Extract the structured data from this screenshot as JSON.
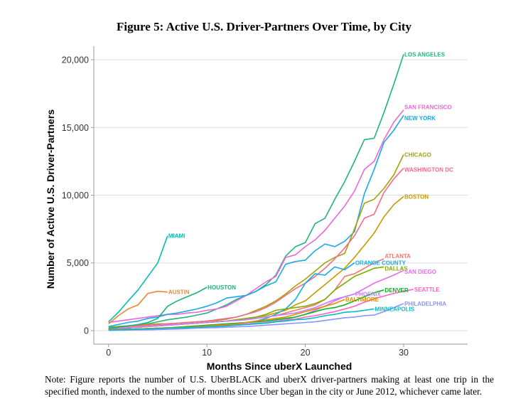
{
  "title": "Figure 5: Active U.S. Driver-Partners Over Time, by City",
  "note": "Note: Figure reports the number of U.S. UberBLACK and uberX driver-partners making at least one trip in the specified month, indexed to the number of months since Uber began in the city or June 2012, whichever came later.",
  "chart_data": {
    "type": "line",
    "title": "Figure 5: Active U.S. Driver-Partners Over Time, by City",
    "xlabel": "Months Since uberX Launched",
    "ylabel": "Number of Active U.S. Driver-Partners",
    "xlim": [
      -1.5,
      36.5
    ],
    "ylim": [
      -1000,
      21000
    ],
    "xticks": [
      0,
      10,
      20,
      30
    ],
    "xtick_labels": [
      "0",
      "10",
      "20",
      "30"
    ],
    "yticks": [
      0,
      5000,
      10000,
      15000,
      20000
    ],
    "ytick_labels": [
      "0",
      "5,000",
      "10,000",
      "15,000",
      "20,000"
    ],
    "grid": "horizontal",
    "legend": "direct labels at line ends",
    "series": [
      {
        "name": "LOS ANGELES",
        "color": "#1fb57f",
        "label_dx": 0,
        "label_dy": 0,
        "x": [
          0,
          1,
          2,
          3,
          4,
          5,
          6,
          7,
          8,
          9,
          10,
          11,
          12,
          13,
          14,
          15,
          16,
          17,
          18,
          19,
          20,
          21,
          22,
          23,
          24,
          25,
          26,
          27,
          28,
          29,
          30
        ],
        "y": [
          250,
          300,
          350,
          400,
          500,
          650,
          800,
          900,
          1000,
          1150,
          1300,
          1600,
          1900,
          2300,
          2600,
          2900,
          3400,
          4100,
          5500,
          6200,
          6500,
          7900,
          8300,
          9700,
          11000,
          12500,
          14100,
          14200,
          16100,
          18200,
          20400
        ]
      },
      {
        "name": "SAN FRANCISCO",
        "color": "#f066d8",
        "label_dx": 0,
        "label_dy": -4,
        "x": [
          0,
          1,
          2,
          3,
          4,
          5,
          6,
          7,
          8,
          9,
          10,
          11,
          12,
          13,
          14,
          15,
          16,
          17,
          18,
          19,
          20,
          21,
          22,
          23,
          24,
          25,
          26,
          27,
          28,
          29,
          30
        ],
        "y": [
          600,
          700,
          800,
          900,
          1000,
          1100,
          1200,
          1200,
          1300,
          1350,
          1500,
          1600,
          1800,
          2200,
          2600,
          3100,
          3600,
          4000,
          5400,
          5600,
          6200,
          6700,
          7400,
          8300,
          9200,
          10300,
          11900,
          12500,
          14100,
          15400,
          16300
        ]
      },
      {
        "name": "NEW YORK",
        "color": "#1aa9e8",
        "label_dx": 0,
        "label_dy": 4,
        "x": [
          0,
          1,
          2,
          3,
          4,
          5,
          6,
          7,
          8,
          9,
          10,
          11,
          12,
          13,
          14,
          15,
          16,
          17,
          18,
          19,
          20,
          21,
          22,
          23,
          24,
          25,
          26,
          27,
          28,
          29,
          30
        ],
        "y": [
          300,
          450,
          600,
          700,
          900,
          1000,
          1200,
          1300,
          1450,
          1600,
          1800,
          2050,
          2400,
          2500,
          2600,
          2900,
          3300,
          3600,
          4900,
          5100,
          5200,
          5900,
          6400,
          6200,
          6600,
          7300,
          10100,
          11900,
          13900,
          14800,
          15900
        ]
      },
      {
        "name": "CHICAGO",
        "color": "#a3a500",
        "label_dx": 0,
        "label_dy": 0,
        "x": [
          0,
          1,
          2,
          3,
          4,
          5,
          6,
          7,
          8,
          9,
          10,
          11,
          12,
          13,
          14,
          15,
          16,
          17,
          18,
          19,
          20,
          21,
          22,
          23,
          24,
          25,
          26,
          27,
          28,
          29,
          30
        ],
        "y": [
          200,
          300,
          350,
          400,
          450,
          500,
          500,
          550,
          600,
          650,
          700,
          750,
          850,
          1000,
          1200,
          1500,
          1800,
          2200,
          2700,
          3300,
          3800,
          4400,
          5000,
          5400,
          5700,
          7500,
          9400,
          9700,
          10500,
          11500,
          13000
        ]
      },
      {
        "name": "WASHINGTON DC",
        "color": "#f8678f",
        "label_dx": 0,
        "label_dy": 2,
        "x": [
          0,
          1,
          2,
          3,
          4,
          5,
          6,
          7,
          8,
          9,
          10,
          11,
          12,
          13,
          14,
          15,
          16,
          17,
          18,
          19,
          20,
          21,
          22,
          23,
          24,
          25,
          26,
          27,
          28,
          29,
          30
        ],
        "y": [
          150,
          250,
          300,
          350,
          400,
          450,
          500,
          550,
          600,
          650,
          700,
          800,
          900,
          1000,
          1200,
          1400,
          1700,
          2100,
          2600,
          3100,
          3500,
          4000,
          4600,
          5300,
          6100,
          7000,
          8300,
          8600,
          10200,
          11200,
          12000
        ]
      },
      {
        "name": "BOSTON",
        "color": "#c49a00",
        "label_dx": 0,
        "label_dy": 0,
        "x": [
          0,
          1,
          2,
          3,
          4,
          5,
          6,
          7,
          8,
          9,
          10,
          11,
          12,
          13,
          14,
          15,
          16,
          17,
          18,
          19,
          20,
          21,
          22,
          23,
          24,
          25,
          26,
          27,
          28,
          29,
          30
        ],
        "y": [
          100,
          150,
          200,
          250,
          300,
          350,
          400,
          450,
          500,
          550,
          600,
          650,
          700,
          800,
          900,
          1000,
          1100,
          1300,
          1500,
          1900,
          2200,
          2800,
          3400,
          4000,
          4600,
          5400,
          6300,
          7200,
          8400,
          9300,
          9900
        ]
      },
      {
        "name": "ATLANTA",
        "color": "#f8766d",
        "label_dx": 0,
        "label_dy": -4,
        "x": [
          0,
          1,
          2,
          3,
          4,
          5,
          6,
          7,
          8,
          9,
          10,
          11,
          12,
          13,
          14,
          15,
          16,
          17,
          18,
          19,
          20,
          21,
          22,
          23,
          24,
          25,
          26,
          27,
          28
        ],
        "y": [
          100,
          150,
          200,
          250,
          300,
          350,
          400,
          450,
          500,
          550,
          600,
          650,
          700,
          750,
          800,
          900,
          1000,
          1100,
          1300,
          1500,
          1700,
          1900,
          2300,
          3000,
          4000,
          4200,
          4600,
          5000,
          5300
        ]
      },
      {
        "name": "ORANGE COUNTY",
        "color": "#1aa9e8",
        "label_dx": 0,
        "label_dy": 0,
        "x": [
          0,
          1,
          2,
          3,
          4,
          5,
          6,
          7,
          8,
          9,
          10,
          11,
          12,
          13,
          14,
          15,
          16,
          17,
          18,
          19,
          20,
          21,
          22,
          23,
          24,
          25
        ],
        "y": [
          50,
          80,
          100,
          120,
          150,
          180,
          200,
          220,
          250,
          280,
          300,
          350,
          400,
          500,
          600,
          700,
          900,
          1200,
          1600,
          2300,
          3500,
          4200,
          4100,
          4700,
          4500,
          5000
        ]
      },
      {
        "name": "DALLAS",
        "color": "#7cae00",
        "label_dx": 0,
        "label_dy": 2,
        "x": [
          0,
          1,
          2,
          3,
          4,
          5,
          6,
          7,
          8,
          9,
          10,
          11,
          12,
          13,
          14,
          15,
          16,
          17,
          18,
          19,
          20,
          21,
          22,
          23,
          24,
          25,
          26,
          27,
          28
        ],
        "y": [
          100,
          150,
          200,
          250,
          300,
          350,
          400,
          450,
          500,
          550,
          600,
          650,
          700,
          800,
          900,
          1000,
          1200,
          1500,
          1600,
          1700,
          1800,
          2000,
          2300,
          3000,
          3500,
          4000,
          4300,
          4600,
          4700
        ]
      },
      {
        "name": "SAN DIEGO",
        "color": "#e76bf3",
        "label_dx": 0,
        "label_dy": 2,
        "x": [
          0,
          1,
          2,
          3,
          4,
          5,
          6,
          7,
          8,
          9,
          10,
          11,
          12,
          13,
          14,
          15,
          16,
          17,
          18,
          19,
          20,
          21,
          22,
          23,
          24,
          25,
          26,
          27,
          28,
          29,
          30
        ],
        "y": [
          50,
          80,
          100,
          120,
          150,
          180,
          200,
          220,
          250,
          280,
          300,
          350,
          400,
          450,
          500,
          550,
          600,
          700,
          800,
          1000,
          1200,
          1500,
          1800,
          2200,
          2500,
          2700,
          3100,
          3500,
          3800,
          4100,
          4450
        ]
      },
      {
        "name": "PHOENIX",
        "color": "#c77cff",
        "label_dx": 0,
        "label_dy": 0,
        "x": [
          0,
          1,
          2,
          3,
          4,
          5,
          6,
          7,
          8,
          9,
          10,
          11,
          12,
          13,
          14,
          15,
          16,
          17,
          18,
          19,
          20,
          21,
          22,
          23,
          24,
          25
        ],
        "y": [
          100,
          150,
          200,
          250,
          300,
          350,
          400,
          450,
          500,
          550,
          600,
          650,
          700,
          750,
          800,
          900,
          1000,
          1100,
          1200,
          1300,
          1500,
          1700,
          2000,
          2300,
          2500,
          2700
        ]
      },
      {
        "name": "DENVER",
        "color": "#00b81f",
        "label_dx": 0,
        "label_dy": 0,
        "x": [
          0,
          1,
          2,
          3,
          4,
          5,
          6,
          7,
          8,
          9,
          10,
          11,
          12,
          13,
          14,
          15,
          16,
          17,
          18,
          19,
          20,
          21,
          22,
          23,
          24,
          25,
          26,
          27,
          28
        ],
        "y": [
          50,
          80,
          100,
          120,
          150,
          180,
          200,
          250,
          300,
          350,
          400,
          450,
          500,
          550,
          600,
          650,
          700,
          800,
          900,
          1000,
          1200,
          1400,
          1600,
          1700,
          1900,
          2200,
          2500,
          2800,
          3000
        ]
      },
      {
        "name": "SEATTLE",
        "color": "#ff61c3",
        "label_dx": 0,
        "label_dy": 0,
        "x": [
          0,
          1,
          2,
          3,
          4,
          5,
          6,
          7,
          8,
          9,
          10,
          11,
          12,
          13,
          14,
          15,
          16,
          17,
          18,
          19,
          20,
          21,
          22,
          23,
          24,
          25,
          26,
          27,
          28,
          29,
          30,
          31
        ],
        "y": [
          30,
          50,
          80,
          100,
          120,
          150,
          180,
          200,
          220,
          250,
          280,
          300,
          350,
          400,
          450,
          500,
          550,
          650,
          750,
          850,
          1000,
          1100,
          1250,
          1400,
          1600,
          1800,
          2100,
          2350,
          2550,
          2750,
          2900,
          3050
        ]
      },
      {
        "name": "BALTIMORE",
        "color": "#db8e00",
        "label_dx": 0,
        "label_dy": 0,
        "x": [
          0,
          1,
          2,
          3,
          4,
          5,
          6,
          7,
          8,
          9,
          10,
          11,
          12,
          13,
          14,
          15,
          16,
          17,
          18,
          19,
          20,
          21,
          22,
          23,
          24
        ],
        "y": [
          50,
          80,
          100,
          120,
          150,
          180,
          200,
          220,
          250,
          300,
          350,
          400,
          450,
          500,
          600,
          700,
          800,
          900,
          1000,
          1200,
          1400,
          1600,
          1800,
          2000,
          2300
        ]
      },
      {
        "name": "PHILADELPHIA",
        "color": "#8b93ff",
        "label_dx": 0,
        "label_dy": 0,
        "x": [
          0,
          1,
          2,
          3,
          4,
          5,
          6,
          7,
          8,
          9,
          10,
          11,
          12,
          13,
          14,
          15,
          16,
          17,
          18,
          19,
          20,
          21,
          22,
          23,
          24,
          25,
          26,
          27,
          28,
          29,
          30
        ],
        "y": [
          20,
          30,
          40,
          50,
          60,
          80,
          100,
          120,
          150,
          180,
          200,
          220,
          250,
          280,
          300,
          350,
          400,
          450,
          500,
          550,
          600,
          650,
          750,
          850,
          950,
          1000,
          1100,
          1150,
          1400,
          1700,
          2000
        ]
      },
      {
        "name": "MINNEAPOLIS",
        "color": "#00bfc4",
        "label_dx": 0,
        "label_dy": 0,
        "x": [
          0,
          1,
          2,
          3,
          4,
          5,
          6,
          7,
          8,
          9,
          10,
          11,
          12,
          13,
          14,
          15,
          16,
          17,
          18,
          19,
          20,
          21,
          22,
          23,
          24,
          25,
          26,
          27
        ],
        "y": [
          30,
          50,
          80,
          100,
          120,
          150,
          180,
          200,
          220,
          250,
          280,
          300,
          350,
          400,
          450,
          500,
          550,
          650,
          700,
          800,
          850,
          950,
          1100,
          1200,
          1350,
          1400,
          1500,
          1600
        ]
      },
      {
        "name": "MIAMI",
        "color": "#00bfb0",
        "label_dx": 0,
        "label_dy": 0,
        "x": [
          0,
          1,
          2,
          3,
          4,
          5,
          6
        ],
        "y": [
          650,
          1350,
          2200,
          3000,
          4000,
          5000,
          7000
        ]
      },
      {
        "name": "AUSTIN",
        "color": "#f0852d",
        "label_dx": 0,
        "label_dy": 0,
        "x": [
          0,
          1,
          2,
          3,
          4,
          5,
          6
        ],
        "y": [
          500,
          1100,
          1600,
          1900,
          2750,
          2900,
          2850
        ]
      },
      {
        "name": "HOUSTON",
        "color": "#12b870",
        "label_dx": 0,
        "label_dy": 0,
        "x": [
          0,
          1,
          2,
          3,
          4,
          5,
          6,
          7,
          8,
          9,
          10
        ],
        "y": [
          150,
          250,
          350,
          450,
          600,
          900,
          1800,
          2200,
          2500,
          2800,
          3200
        ]
      }
    ]
  }
}
